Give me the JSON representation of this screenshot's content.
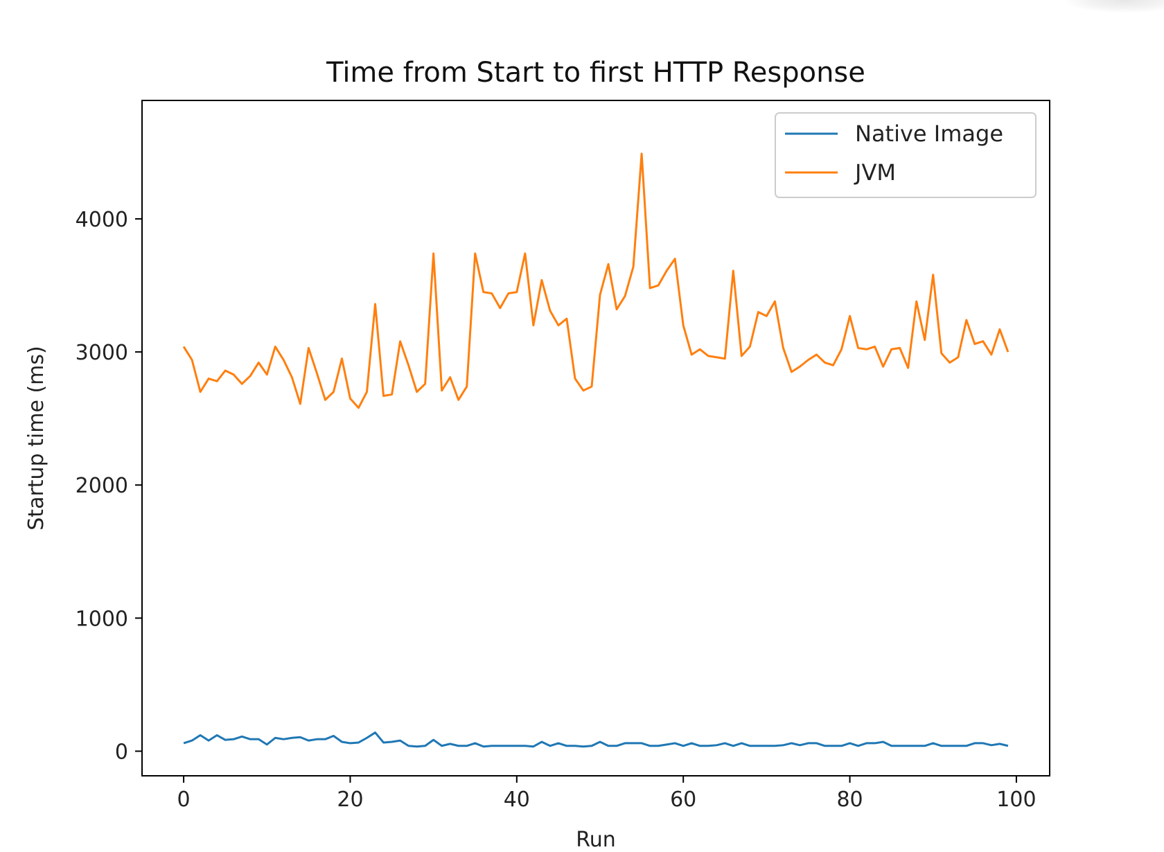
{
  "chart_data": {
    "type": "line",
    "title": "Time from Start to first HTTP Response",
    "xlabel": "Run",
    "ylabel": "Startup time (ms)",
    "xlim": [
      -5,
      104
    ],
    "ylim": [
      -185,
      4890
    ],
    "xticks": [
      0,
      20,
      40,
      60,
      80,
      100
    ],
    "xtick_labels": [
      "0",
      "20",
      "40",
      "60",
      "80",
      "100"
    ],
    "yticks": [
      0,
      1000,
      2000,
      3000,
      4000
    ],
    "ytick_labels": [
      "0",
      "1000",
      "2000",
      "3000",
      "4000"
    ],
    "grid": false,
    "legend_position": "top-right",
    "series": [
      {
        "name": "Native Image",
        "color": "#1f77b4",
        "values": [
          60,
          80,
          120,
          80,
          120,
          85,
          90,
          110,
          90,
          90,
          50,
          100,
          90,
          100,
          105,
          80,
          90,
          90,
          115,
          70,
          60,
          65,
          100,
          140,
          65,
          70,
          80,
          40,
          35,
          40,
          85,
          40,
          55,
          40,
          40,
          60,
          35,
          40,
          40,
          40,
          40,
          40,
          35,
          70,
          40,
          60,
          40,
          40,
          35,
          40,
          70,
          40,
          40,
          60,
          60,
          60,
          40,
          40,
          50,
          60,
          40,
          60,
          40,
          40,
          45,
          60,
          40,
          60,
          40,
          40,
          40,
          40,
          45,
          60,
          45,
          60,
          60,
          40,
          40,
          40,
          60,
          40,
          60,
          60,
          70,
          40,
          40,
          40,
          40,
          40,
          60,
          40,
          40,
          40,
          40,
          60,
          60,
          45,
          55,
          40
        ]
      },
      {
        "name": "JVM",
        "color": "#ff7f0e",
        "values": [
          3040,
          2940,
          2700,
          2800,
          2780,
          2860,
          2830,
          2760,
          2820,
          2920,
          2830,
          3040,
          2940,
          2810,
          2610,
          3030,
          2840,
          2640,
          2700,
          2950,
          2650,
          2580,
          2700,
          3360,
          2670,
          2680,
          3080,
          2900,
          2700,
          2760,
          3740,
          2710,
          2810,
          2640,
          2740,
          3740,
          3450,
          3440,
          3330,
          3440,
          3450,
          3740,
          3200,
          3540,
          3310,
          3200,
          3250,
          2800,
          2710,
          2740,
          3430,
          3660,
          3320,
          3420,
          3640,
          4490,
          3480,
          3500,
          3610,
          3700,
          3200,
          2980,
          3020,
          2970,
          2960,
          2950,
          3610,
          2970,
          3040,
          3300,
          3270,
          3380,
          3030,
          2850,
          2890,
          2940,
          2980,
          2920,
          2900,
          3020,
          3270,
          3030,
          3020,
          3040,
          2890,
          3020,
          3030,
          2880,
          3380,
          3090,
          3580,
          2990,
          2920,
          2960,
          3240,
          3060,
          3080,
          2980,
          3170,
          3000
        ]
      }
    ]
  }
}
